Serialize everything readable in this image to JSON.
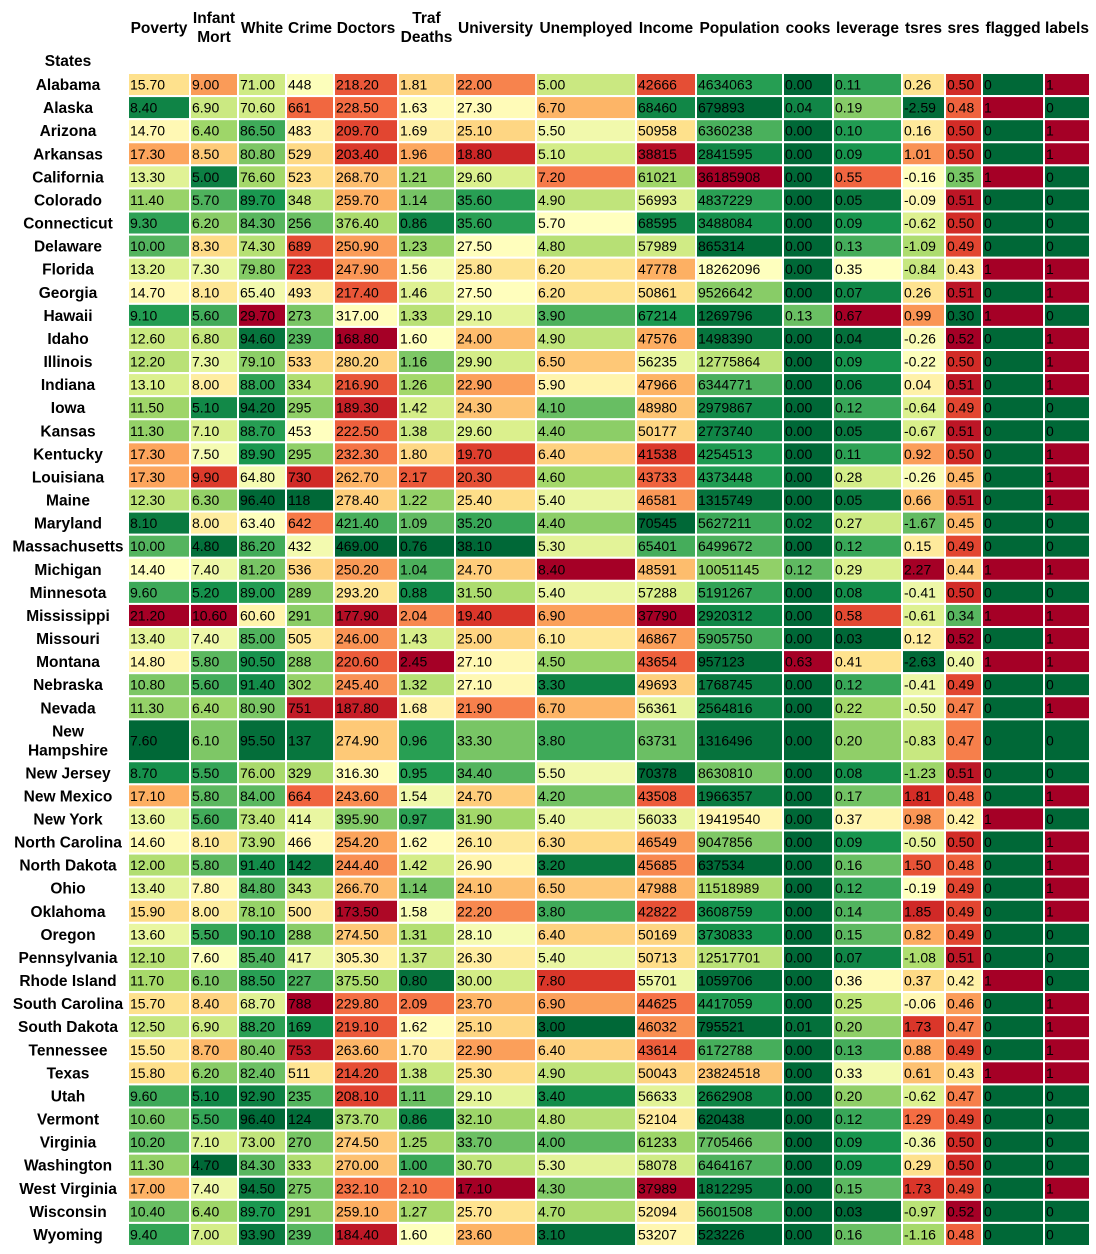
{
  "chart_data": {
    "type": "heatmap",
    "row_header": "States",
    "columns": [
      {
        "key": "poverty",
        "label": [
          "Poverty"
        ],
        "decimals": 2,
        "higher_is_bad": true
      },
      {
        "key": "infant_mort",
        "label": [
          "Infant",
          "Mort"
        ],
        "decimals": 2,
        "higher_is_bad": true
      },
      {
        "key": "white",
        "label": [
          "White"
        ],
        "decimals": 2,
        "higher_is_bad": false
      },
      {
        "key": "crime",
        "label": [
          "Crime"
        ],
        "decimals": 0,
        "higher_is_bad": true
      },
      {
        "key": "doctors",
        "label": [
          "Doctors"
        ],
        "decimals": 2,
        "higher_is_bad": false
      },
      {
        "key": "traf_deaths",
        "label": [
          "Traf",
          "Deaths"
        ],
        "decimals": 2,
        "higher_is_bad": true
      },
      {
        "key": "university",
        "label": [
          "University"
        ],
        "decimals": 2,
        "higher_is_bad": false
      },
      {
        "key": "unemployed",
        "label": [
          "Unemployed"
        ],
        "decimals": 2,
        "higher_is_bad": true
      },
      {
        "key": "income",
        "label": [
          "Income"
        ],
        "decimals": 0,
        "higher_is_bad": false
      },
      {
        "key": "population",
        "label": [
          "Population"
        ],
        "decimals": 0,
        "higher_is_bad": true
      },
      {
        "key": "cooks",
        "label": [
          "cooks"
        ],
        "decimals": 2,
        "higher_is_bad": true
      },
      {
        "key": "leverage",
        "label": [
          "leverage"
        ],
        "decimals": 2,
        "higher_is_bad": true
      },
      {
        "key": "tsres",
        "label": [
          "tsres"
        ],
        "decimals": 2,
        "higher_is_bad": true
      },
      {
        "key": "sres",
        "label": [
          "sres"
        ],
        "decimals": 2,
        "higher_is_bad": true
      },
      {
        "key": "flagged",
        "label": [
          "flagged"
        ],
        "decimals": 0,
        "higher_is_bad": true
      },
      {
        "key": "labels",
        "label": [
          "labels"
        ],
        "decimals": 0,
        "higher_is_bad": true
      }
    ],
    "rows": [
      {
        "state": "Alabama",
        "values": [
          15.7,
          9.0,
          71.0,
          448,
          218.2,
          1.81,
          22.0,
          5.0,
          42666,
          4634063,
          0.0,
          0.11,
          0.26,
          0.5,
          0,
          1
        ]
      },
      {
        "state": "Alaska",
        "values": [
          8.4,
          6.9,
          70.6,
          661,
          228.5,
          1.63,
          27.3,
          6.7,
          68460,
          679893,
          0.04,
          0.19,
          -2.59,
          0.48,
          1,
          0
        ]
      },
      {
        "state": "Arizona",
        "values": [
          14.7,
          6.4,
          86.5,
          483,
          209.7,
          1.69,
          25.1,
          5.5,
          50958,
          6360238,
          0.0,
          0.1,
          0.16,
          0.5,
          0,
          1
        ]
      },
      {
        "state": "Arkansas",
        "values": [
          17.3,
          8.5,
          80.8,
          529,
          203.4,
          1.96,
          18.8,
          5.1,
          38815,
          2841595,
          0.0,
          0.09,
          1.01,
          0.5,
          0,
          1
        ]
      },
      {
        "state": "California",
        "values": [
          13.3,
          5.0,
          76.6,
          523,
          268.7,
          1.21,
          29.6,
          7.2,
          61021,
          36185908,
          0.0,
          0.55,
          -0.16,
          0.35,
          1,
          0
        ]
      },
      {
        "state": "Colorado",
        "values": [
          11.4,
          5.7,
          89.7,
          348,
          259.7,
          1.14,
          35.6,
          4.9,
          56993,
          4837229,
          0.0,
          0.05,
          -0.09,
          0.51,
          0,
          0
        ]
      },
      {
        "state": "Connecticut",
        "values": [
          9.3,
          6.2,
          84.3,
          256,
          376.4,
          0.86,
          35.6,
          5.7,
          68595,
          3488084,
          0.0,
          0.09,
          -0.62,
          0.5,
          0,
          0
        ]
      },
      {
        "state": "Delaware",
        "values": [
          10.0,
          8.3,
          74.3,
          689,
          250.9,
          1.23,
          27.5,
          4.8,
          57989,
          865314,
          0.0,
          0.13,
          -1.09,
          0.49,
          0,
          0
        ]
      },
      {
        "state": "Florida",
        "values": [
          13.2,
          7.3,
          79.8,
          723,
          247.9,
          1.56,
          25.8,
          6.2,
          47778,
          18262096,
          0.0,
          0.35,
          -0.84,
          0.43,
          1,
          1
        ]
      },
      {
        "state": "Georgia",
        "values": [
          14.7,
          8.1,
          65.4,
          493,
          217.4,
          1.46,
          27.5,
          6.2,
          50861,
          9526642,
          0.0,
          0.07,
          0.26,
          0.51,
          0,
          1
        ]
      },
      {
        "state": "Hawaii",
        "values": [
          9.1,
          5.6,
          29.7,
          273,
          317.0,
          1.33,
          29.1,
          3.9,
          67214,
          1269796,
          0.13,
          0.67,
          0.99,
          0.3,
          1,
          0
        ]
      },
      {
        "state": "Idaho",
        "values": [
          12.6,
          6.8,
          94.6,
          239,
          168.8,
          1.6,
          24.0,
          4.9,
          47576,
          1498390,
          0.0,
          0.04,
          -0.26,
          0.52,
          0,
          1
        ]
      },
      {
        "state": "Illinois",
        "values": [
          12.2,
          7.3,
          79.1,
          533,
          280.2,
          1.16,
          29.9,
          6.5,
          56235,
          12775864,
          0.0,
          0.09,
          -0.22,
          0.5,
          0,
          1
        ]
      },
      {
        "state": "Indiana",
        "values": [
          13.1,
          8.0,
          88.0,
          334,
          216.9,
          1.26,
          22.9,
          5.9,
          47966,
          6344771,
          0.0,
          0.06,
          0.04,
          0.51,
          0,
          1
        ]
      },
      {
        "state": "Iowa",
        "values": [
          11.5,
          5.1,
          94.2,
          295,
          189.3,
          1.42,
          24.3,
          4.1,
          48980,
          2979867,
          0.0,
          0.12,
          -0.64,
          0.49,
          0,
          0
        ]
      },
      {
        "state": "Kansas",
        "values": [
          11.3,
          7.1,
          88.7,
          453,
          222.5,
          1.38,
          29.6,
          4.4,
          50177,
          2773740,
          0.0,
          0.05,
          -0.67,
          0.51,
          0,
          0
        ]
      },
      {
        "state": "Kentucky",
        "values": [
          17.3,
          7.5,
          89.9,
          295,
          232.3,
          1.8,
          19.7,
          6.4,
          41538,
          4254513,
          0.0,
          0.11,
          0.92,
          0.5,
          0,
          1
        ]
      },
      {
        "state": "Louisiana",
        "values": [
          17.3,
          9.9,
          64.8,
          730,
          262.7,
          2.17,
          20.3,
          4.6,
          43733,
          4373448,
          0.0,
          0.28,
          -0.26,
          0.45,
          0,
          1
        ]
      },
      {
        "state": "Maine",
        "values": [
          12.3,
          6.3,
          96.4,
          118,
          278.4,
          1.22,
          25.4,
          5.4,
          46581,
          1315749,
          0.0,
          0.05,
          0.66,
          0.51,
          0,
          1
        ]
      },
      {
        "state": "Maryland",
        "values": [
          8.1,
          8.0,
          63.4,
          642,
          421.4,
          1.09,
          35.2,
          4.4,
          70545,
          5627211,
          0.02,
          0.27,
          -1.67,
          0.45,
          0,
          0
        ]
      },
      {
        "state": "Massachusetts",
        "values": [
          10.0,
          4.8,
          86.2,
          432,
          469.0,
          0.76,
          38.1,
          5.3,
          65401,
          6499672,
          0.0,
          0.12,
          0.15,
          0.49,
          0,
          0
        ]
      },
      {
        "state": "Michigan",
        "values": [
          14.4,
          7.4,
          81.2,
          536,
          250.2,
          1.04,
          24.7,
          8.4,
          48591,
          10051145,
          0.12,
          0.29,
          2.27,
          0.44,
          1,
          1
        ]
      },
      {
        "state": "Minnesota",
        "values": [
          9.6,
          5.2,
          89.0,
          289,
          293.2,
          0.88,
          31.5,
          5.4,
          57288,
          5191267,
          0.0,
          0.08,
          -0.41,
          0.5,
          0,
          0
        ]
      },
      {
        "state": "Mississippi",
        "values": [
          21.2,
          10.6,
          60.6,
          291,
          177.9,
          2.04,
          19.4,
          6.9,
          37790,
          2920312,
          0.0,
          0.58,
          -0.61,
          0.34,
          1,
          1
        ]
      },
      {
        "state": "Missouri",
        "values": [
          13.4,
          7.4,
          85.0,
          505,
          246.0,
          1.43,
          25.0,
          6.1,
          46867,
          5905750,
          0.0,
          0.03,
          0.12,
          0.52,
          0,
          1
        ]
      },
      {
        "state": "Montana",
        "values": [
          14.8,
          5.8,
          90.5,
          288,
          220.6,
          2.45,
          27.1,
          4.5,
          43654,
          957123,
          0.63,
          0.41,
          -2.63,
          0.4,
          1,
          1
        ]
      },
      {
        "state": "Nebraska",
        "values": [
          10.8,
          5.6,
          91.4,
          302,
          245.4,
          1.32,
          27.1,
          3.3,
          49693,
          1768745,
          0.0,
          0.12,
          -0.41,
          0.49,
          0,
          0
        ]
      },
      {
        "state": "Nevada",
        "values": [
          11.3,
          6.4,
          80.9,
          751,
          187.8,
          1.68,
          21.9,
          6.7,
          56361,
          2564816,
          0.0,
          0.22,
          -0.5,
          0.47,
          0,
          1
        ]
      },
      {
        "state": "New Hampshire",
        "values": [
          7.6,
          6.1,
          95.5,
          137,
          274.9,
          0.96,
          33.3,
          3.8,
          63731,
          1316496,
          0.0,
          0.2,
          -0.83,
          0.47,
          0,
          0
        ]
      },
      {
        "state": "New Jersey",
        "values": [
          8.7,
          5.5,
          76.0,
          329,
          316.3,
          0.95,
          34.4,
          5.5,
          70378,
          8630810,
          0.0,
          0.08,
          -1.23,
          0.51,
          0,
          0
        ]
      },
      {
        "state": "New Mexico",
        "values": [
          17.1,
          5.8,
          84.0,
          664,
          243.6,
          1.54,
          24.7,
          4.2,
          43508,
          1966357,
          0.0,
          0.17,
          1.81,
          0.48,
          0,
          1
        ]
      },
      {
        "state": "New York",
        "values": [
          13.6,
          5.6,
          73.4,
          414,
          395.9,
          0.97,
          31.9,
          5.4,
          56033,
          19419540,
          0.0,
          0.37,
          0.98,
          0.42,
          1,
          0
        ]
      },
      {
        "state": "North Carolina",
        "values": [
          14.6,
          8.1,
          73.9,
          466,
          254.2,
          1.62,
          26.1,
          6.3,
          46549,
          9047856,
          0.0,
          0.09,
          -0.5,
          0.5,
          0,
          1
        ]
      },
      {
        "state": "North Dakota",
        "values": [
          12.0,
          5.8,
          91.4,
          142,
          244.4,
          1.42,
          26.9,
          3.2,
          45685,
          637534,
          0.0,
          0.16,
          1.5,
          0.48,
          0,
          1
        ]
      },
      {
        "state": "Ohio",
        "values": [
          13.4,
          7.8,
          84.8,
          343,
          266.7,
          1.14,
          24.1,
          6.5,
          47988,
          11518989,
          0.0,
          0.12,
          -0.19,
          0.49,
          0,
          1
        ]
      },
      {
        "state": "Oklahoma",
        "values": [
          15.9,
          8.0,
          78.1,
          500,
          173.5,
          1.58,
          22.2,
          3.8,
          42822,
          3608759,
          0.0,
          0.14,
          1.85,
          0.49,
          0,
          1
        ]
      },
      {
        "state": "Oregon",
        "values": [
          13.6,
          5.5,
          90.1,
          288,
          274.5,
          1.31,
          28.1,
          6.4,
          50169,
          3730833,
          0.0,
          0.15,
          0.82,
          0.49,
          0,
          0
        ]
      },
      {
        "state": "Pennsylvania",
        "values": [
          12.1,
          7.6,
          85.4,
          417,
          305.3,
          1.37,
          26.3,
          5.4,
          50713,
          12517701,
          0.0,
          0.07,
          -1.08,
          0.51,
          0,
          0
        ]
      },
      {
        "state": "Rhode Island",
        "values": [
          11.7,
          6.1,
          88.5,
          227,
          375.5,
          0.8,
          30.0,
          7.8,
          55701,
          1059706,
          0.0,
          0.36,
          0.37,
          0.42,
          1,
          0
        ]
      },
      {
        "state": "South Carolina",
        "values": [
          15.7,
          8.4,
          68.7,
          788,
          229.8,
          2.09,
          23.7,
          6.9,
          44625,
          4417059,
          0.0,
          0.25,
          -0.06,
          0.46,
          0,
          1
        ]
      },
      {
        "state": "South Dakota",
        "values": [
          12.5,
          6.9,
          88.2,
          169,
          219.1,
          1.62,
          25.1,
          3.0,
          46032,
          795521,
          0.01,
          0.2,
          1.73,
          0.47,
          0,
          1
        ]
      },
      {
        "state": "Tennessee",
        "values": [
          15.5,
          8.7,
          80.4,
          753,
          263.6,
          1.7,
          22.9,
          6.4,
          43614,
          6172788,
          0.0,
          0.13,
          0.88,
          0.49,
          0,
          1
        ]
      },
      {
        "state": "Texas",
        "values": [
          15.8,
          6.2,
          82.4,
          511,
          214.2,
          1.38,
          25.3,
          4.9,
          50043,
          23824518,
          0.0,
          0.33,
          0.61,
          0.43,
          1,
          1
        ]
      },
      {
        "state": "Utah",
        "values": [
          9.6,
          5.1,
          92.9,
          235,
          208.1,
          1.11,
          29.1,
          3.4,
          56633,
          2662908,
          0.0,
          0.2,
          -0.62,
          0.47,
          0,
          0
        ]
      },
      {
        "state": "Vermont",
        "values": [
          10.6,
          5.5,
          96.4,
          124,
          373.7,
          0.86,
          32.1,
          4.8,
          52104,
          620438,
          0.0,
          0.12,
          1.29,
          0.49,
          0,
          0
        ]
      },
      {
        "state": "Virginia",
        "values": [
          10.2,
          7.1,
          73.0,
          270,
          274.5,
          1.25,
          33.7,
          4.0,
          61233,
          7705466,
          0.0,
          0.09,
          -0.36,
          0.5,
          0,
          0
        ]
      },
      {
        "state": "Washington",
        "values": [
          11.3,
          4.7,
          84.3,
          333,
          270.0,
          1.0,
          30.7,
          5.3,
          58078,
          6464167,
          0.0,
          0.09,
          0.29,
          0.5,
          0,
          0
        ]
      },
      {
        "state": "West Virginia",
        "values": [
          17.0,
          7.4,
          94.5,
          275,
          232.1,
          2.1,
          17.1,
          4.3,
          37989,
          1812295,
          0.0,
          0.15,
          1.73,
          0.49,
          0,
          1
        ]
      },
      {
        "state": "Wisconsin",
        "values": [
          10.4,
          6.4,
          89.7,
          291,
          259.1,
          1.27,
          25.7,
          4.7,
          52094,
          5601508,
          0.0,
          0.03,
          -0.97,
          0.52,
          0,
          0
        ]
      },
      {
        "state": "Wyoming",
        "values": [
          9.4,
          7.0,
          93.9,
          239,
          184.4,
          1.6,
          23.6,
          3.1,
          53207,
          523226,
          0.0,
          0.16,
          -1.16,
          0.48,
          0,
          0
        ]
      }
    ],
    "palette": [
      "#a50026",
      "#d73027",
      "#f46d43",
      "#fdae61",
      "#fee08b",
      "#ffffbf",
      "#d9ef8b",
      "#a6d96a",
      "#66bd63",
      "#1a9850",
      "#006837"
    ],
    "grid": false,
    "legend": "none"
  }
}
